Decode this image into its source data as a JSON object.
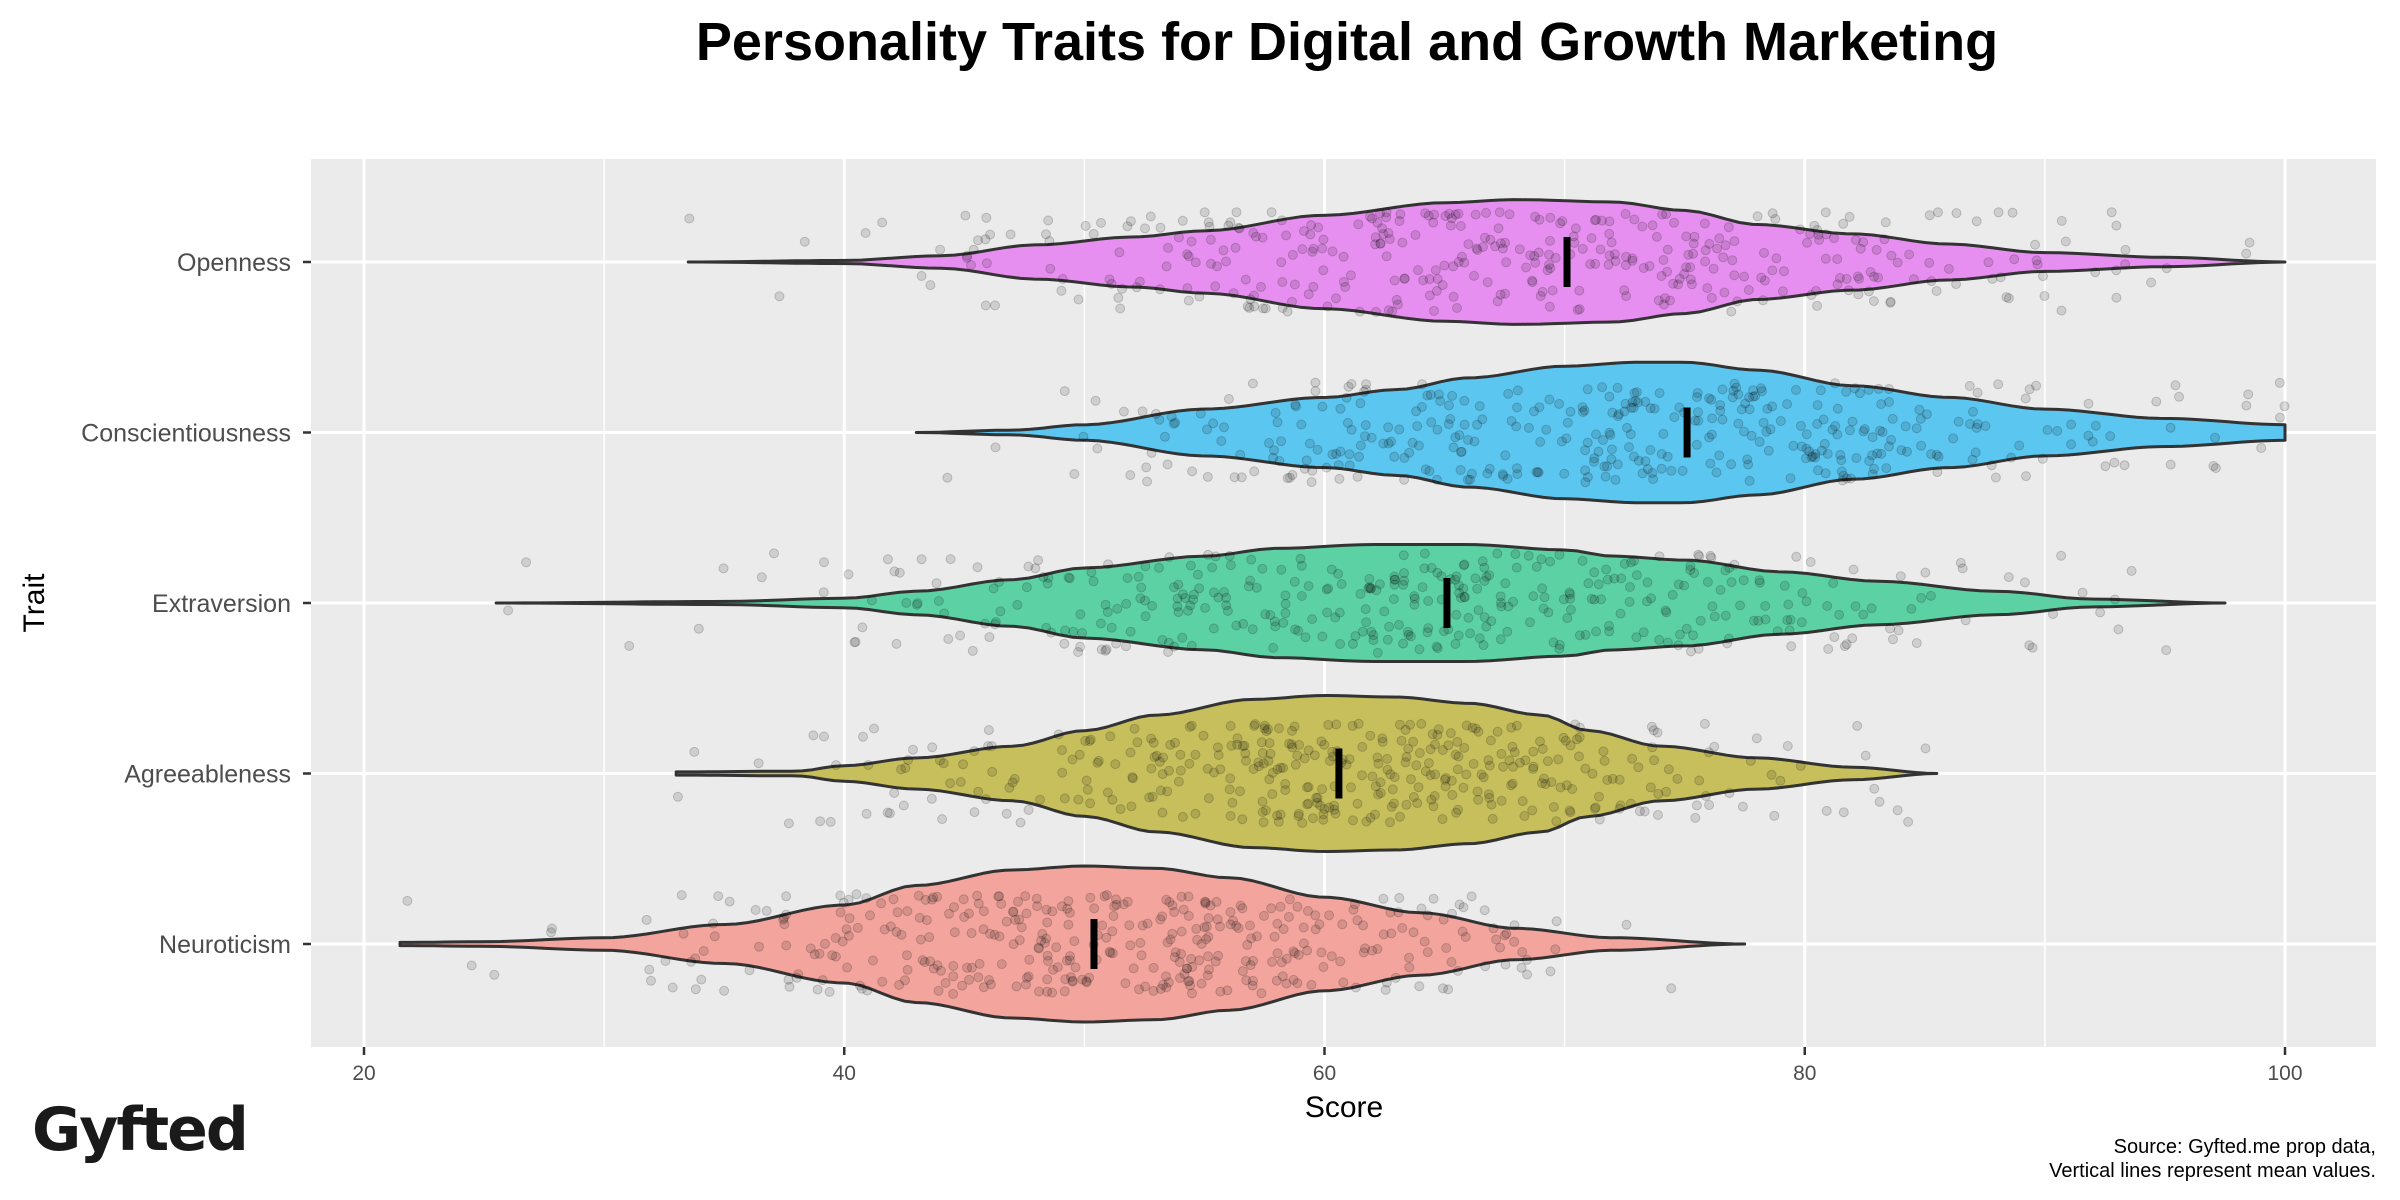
{
  "chart_data": {
    "type": "violin",
    "title": "Personality Traits for Digital and Growth Marketing",
    "xlabel": "Score",
    "ylabel": "Trait",
    "xlim": [
      18,
      102
    ],
    "xticks": [
      20,
      40,
      60,
      80,
      100
    ],
    "xtick_labels": [
      "20",
      "40",
      "60",
      "80",
      "100"
    ],
    "minor_gridlines": [
      30,
      50,
      70,
      90
    ],
    "grid": true,
    "legend": "none",
    "caption_lines": [
      "Source: Gyfted.me prop data,",
      "Vertical lines represent mean values."
    ],
    "logo_text": "Gyfted",
    "categories": [
      "Openness",
      "Conscientiousness",
      "Extraversion",
      "Agreeableness",
      "Neuroticism"
    ],
    "series": [
      {
        "name": "Openness",
        "color": "#E78FF0",
        "mean": 70.1,
        "min": 33.5,
        "max": 100,
        "density": [
          [
            33.5,
            0
          ],
          [
            40,
            0.02
          ],
          [
            44,
            0.08
          ],
          [
            48,
            0.22
          ],
          [
            52,
            0.32
          ],
          [
            55,
            0.4
          ],
          [
            60,
            0.6
          ],
          [
            65,
            0.76
          ],
          [
            68,
            0.8
          ],
          [
            72,
            0.77
          ],
          [
            75,
            0.66
          ],
          [
            78,
            0.48
          ],
          [
            82,
            0.36
          ],
          [
            86,
            0.23
          ],
          [
            90,
            0.12
          ],
          [
            95,
            0.06
          ],
          [
            100,
            0
          ]
        ]
      },
      {
        "name": "Conscientiousness",
        "color": "#5BC6F0",
        "mean": 75.1,
        "min": 43,
        "max": 100,
        "density": [
          [
            43,
            0
          ],
          [
            47,
            0.03
          ],
          [
            50,
            0.1
          ],
          [
            55,
            0.3
          ],
          [
            60,
            0.45
          ],
          [
            63,
            0.55
          ],
          [
            66,
            0.7
          ],
          [
            70,
            0.85
          ],
          [
            73,
            0.9
          ],
          [
            75,
            0.9
          ],
          [
            78,
            0.8
          ],
          [
            82,
            0.6
          ],
          [
            86,
            0.45
          ],
          [
            90,
            0.3
          ],
          [
            95,
            0.18
          ],
          [
            100,
            0.1
          ]
        ]
      },
      {
        "name": "Extraversion",
        "color": "#5CD2A4",
        "mean": 65.1,
        "min": 25.5,
        "max": 97.5,
        "density": [
          [
            25.5,
            0
          ],
          [
            35,
            0.02
          ],
          [
            40,
            0.06
          ],
          [
            43,
            0.15
          ],
          [
            47,
            0.3
          ],
          [
            50,
            0.45
          ],
          [
            55,
            0.6
          ],
          [
            58,
            0.7
          ],
          [
            62,
            0.75
          ],
          [
            66,
            0.75
          ],
          [
            70,
            0.68
          ],
          [
            72,
            0.6
          ],
          [
            75,
            0.55
          ],
          [
            79,
            0.4
          ],
          [
            83,
            0.28
          ],
          [
            88,
            0.15
          ],
          [
            92,
            0.05
          ],
          [
            97.5,
            0
          ]
        ]
      },
      {
        "name": "Agreeableness",
        "color": "#C6BF5C",
        "mean": 60.6,
        "min": 33,
        "max": 85.5,
        "density": [
          [
            33,
            0.02
          ],
          [
            38,
            0.03
          ],
          [
            40,
            0.1
          ],
          [
            43,
            0.2
          ],
          [
            47,
            0.35
          ],
          [
            50,
            0.55
          ],
          [
            53,
            0.75
          ],
          [
            57,
            0.95
          ],
          [
            60,
            1.0
          ],
          [
            63,
            0.98
          ],
          [
            66,
            0.9
          ],
          [
            69,
            0.75
          ],
          [
            71,
            0.55
          ],
          [
            74,
            0.35
          ],
          [
            78,
            0.2
          ],
          [
            82,
            0.08
          ],
          [
            85.5,
            0
          ]
        ]
      },
      {
        "name": "Neuroticism",
        "color": "#F3A49C",
        "mean": 50.4,
        "min": 21.5,
        "max": 77.5,
        "density": [
          [
            21.5,
            0.02
          ],
          [
            25,
            0.03
          ],
          [
            30,
            0.08
          ],
          [
            35,
            0.25
          ],
          [
            40,
            0.5
          ],
          [
            43,
            0.75
          ],
          [
            47,
            0.95
          ],
          [
            50,
            1.0
          ],
          [
            53,
            0.97
          ],
          [
            56,
            0.85
          ],
          [
            60,
            0.6
          ],
          [
            64,
            0.4
          ],
          [
            68,
            0.2
          ],
          [
            72,
            0.08
          ],
          [
            77.5,
            0
          ]
        ]
      }
    ]
  }
}
